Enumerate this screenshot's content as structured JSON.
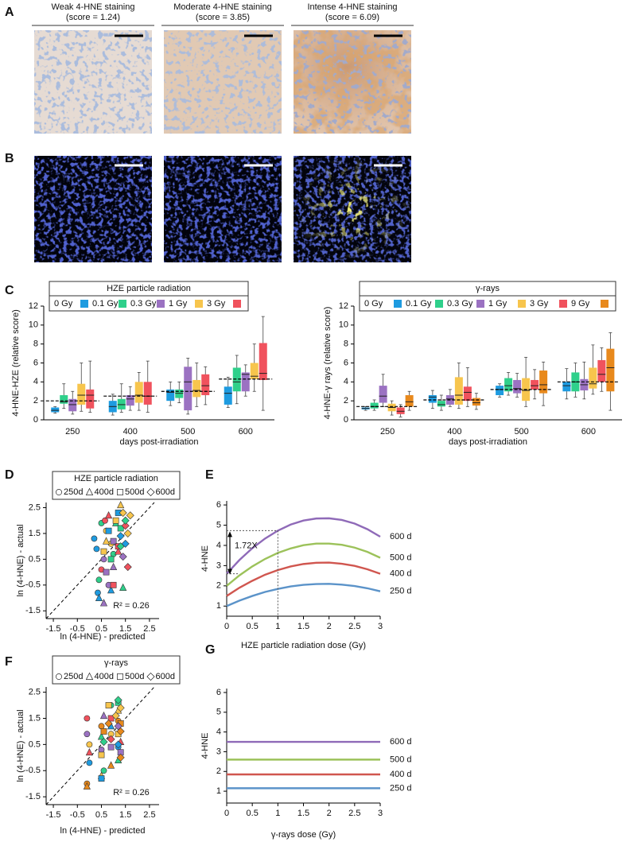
{
  "panels": [
    "A",
    "B",
    "C",
    "D",
    "E",
    "F",
    "G"
  ],
  "images": [
    {
      "title": "Weak 4-HNE staining",
      "subtitle": "(score = 1.24)"
    },
    {
      "title": "Moderate 4-HNE staining",
      "subtitle": "(score = 3.85)"
    },
    {
      "title": "Intense 4-HNE staining",
      "subtitle": "(score = 6.09)"
    }
  ],
  "chart_data": [
    {
      "type": "box",
      "legend_title": "HZE particle radiation",
      "y_label": "4-HNE-HZE (relative score)",
      "x_label": "days post-irradiation",
      "categories": [
        "250",
        "400",
        "500",
        "600"
      ],
      "ylim": [
        0,
        12
      ],
      "yticks": [
        0,
        2,
        4,
        6,
        8,
        10,
        12
      ],
      "means": [
        2.0,
        2.5,
        3.0,
        4.3
      ],
      "series": [
        {
          "name": "0 Gy",
          "color": "#1e9be0",
          "min": [
            0.7,
            0.5,
            1.5,
            1.3
          ],
          "q1": [
            0.8,
            0.8,
            2.0,
            1.6
          ],
          "median": [
            1.0,
            1.4,
            2.9,
            2.8
          ],
          "q3": [
            1.3,
            2.0,
            3.2,
            3.5
          ],
          "max": [
            1.4,
            2.7,
            4.0,
            4.5
          ]
        },
        {
          "name": "0.1 Gy",
          "color": "#2fd08b",
          "min": [
            1.2,
            0.8,
            1.8,
            1.7
          ],
          "q1": [
            1.7,
            1.1,
            2.3,
            3.0
          ],
          "median": [
            1.9,
            1.6,
            2.8,
            4.0
          ],
          "q3": [
            2.6,
            2.2,
            3.2,
            5.5
          ],
          "max": [
            3.8,
            3.8,
            4.0,
            6.8
          ]
        },
        {
          "name": "0.3 Gy",
          "color": "#9b72c2",
          "min": [
            0.6,
            1.0,
            0.6,
            2.5
          ],
          "q1": [
            0.9,
            1.5,
            1.0,
            3.0
          ],
          "median": [
            1.6,
            2.2,
            4.0,
            4.8
          ],
          "q3": [
            2.2,
            2.6,
            5.6,
            5.0
          ],
          "max": [
            3.0,
            3.5,
            6.5,
            5.8
          ]
        },
        {
          "name": "1 Gy",
          "color": "#f7c54d",
          "min": [
            0.9,
            1.0,
            1.4,
            3.0
          ],
          "q1": [
            1.6,
            1.8,
            2.4,
            4.3
          ],
          "median": [
            2.6,
            2.6,
            3.1,
            4.6
          ],
          "q3": [
            3.8,
            4.0,
            4.2,
            6.0
          ],
          "max": [
            6.0,
            5.0,
            6.0,
            8.0
          ]
        },
        {
          "name": "3 Gy",
          "color": "#f0525d",
          "min": [
            0.8,
            0.8,
            1.6,
            1.0
          ],
          "q1": [
            1.2,
            1.6,
            2.6,
            4.2
          ],
          "median": [
            2.6,
            2.5,
            3.6,
            4.9
          ],
          "q3": [
            3.2,
            4.0,
            4.8,
            8.1
          ],
          "max": [
            6.2,
            6.2,
            5.6,
            10.9
          ]
        }
      ]
    },
    {
      "type": "box",
      "legend_title": "γ-rays",
      "y_label": "4-HNE-γ rays (relative score)",
      "x_label": "days post-irradiation",
      "categories": [
        "250",
        "400",
        "500",
        "600"
      ],
      "ylim": [
        0,
        12
      ],
      "yticks": [
        0,
        2,
        4,
        6,
        8,
        10,
        12
      ],
      "means": [
        1.4,
        2.1,
        3.2,
        4.0
      ],
      "series": [
        {
          "name": "0 Gy",
          "color": "#1e9be0",
          "min": [
            1.0,
            1.2,
            2.4,
            2.2
          ],
          "q1": [
            1.1,
            1.8,
            2.6,
            3.0
          ],
          "median": [
            1.2,
            2.4,
            3.2,
            3.6
          ],
          "q3": [
            1.3,
            2.6,
            3.6,
            4.0
          ],
          "max": [
            1.4,
            3.1,
            3.8,
            5.4
          ]
        },
        {
          "name": "0.1 Gy",
          "color": "#2fd08b",
          "min": [
            1.0,
            1.0,
            2.6,
            2.4
          ],
          "q1": [
            1.2,
            1.4,
            3.0,
            3.0
          ],
          "median": [
            1.4,
            1.6,
            3.6,
            4.0
          ],
          "q3": [
            1.8,
            2.0,
            4.4,
            5.0
          ],
          "max": [
            2.1,
            2.6,
            5.0,
            6.0
          ]
        },
        {
          "name": "0.3 Gy",
          "color": "#9b72c2",
          "min": [
            1.4,
            1.4,
            2.4,
            2.2
          ],
          "q1": [
            1.8,
            1.6,
            2.8,
            3.1
          ],
          "median": [
            2.5,
            2.2,
            3.3,
            3.7
          ],
          "q3": [
            3.6,
            2.6,
            4.2,
            4.3
          ],
          "max": [
            4.8,
            3.2,
            4.9,
            6.1
          ]
        },
        {
          "name": "1 Gy",
          "color": "#f7c54d",
          "min": [
            0.5,
            1.2,
            1.4,
            2.7
          ],
          "q1": [
            0.9,
            1.6,
            2.0,
            3.3
          ],
          "median": [
            1.3,
            2.6,
            3.1,
            3.8
          ],
          "q3": [
            1.7,
            4.5,
            4.4,
            5.5
          ],
          "max": [
            2.0,
            6.0,
            6.6,
            7.9
          ]
        },
        {
          "name": "3 Gy",
          "color": "#f0525d",
          "min": [
            0.3,
            1.4,
            2.2,
            3.0
          ],
          "q1": [
            0.6,
            2.0,
            3.2,
            4.0
          ],
          "median": [
            0.9,
            2.9,
            3.6,
            4.8
          ],
          "q3": [
            1.3,
            3.5,
            4.2,
            6.3
          ],
          "max": [
            1.6,
            5.5,
            5.3,
            7.6
          ]
        },
        {
          "name": "9 Gy",
          "color": "#e8891c",
          "min": [
            1.0,
            1.1,
            1.5,
            1.0
          ],
          "q1": [
            1.4,
            1.5,
            2.8,
            3.0
          ],
          "median": [
            1.9,
            1.8,
            3.7,
            5.5
          ],
          "q3": [
            2.6,
            2.3,
            5.2,
            7.5
          ],
          "max": [
            3.0,
            2.8,
            6.1,
            9.2
          ]
        }
      ]
    },
    {
      "type": "scatter",
      "legend_title": "HZE particle radiation",
      "y_label": "ln (4-HNE) - actual",
      "x_label": "ln (4-HNE) - predicted",
      "annotation": "R² = 0.26",
      "xlim": [
        -1.8,
        2.9
      ],
      "ylim": [
        -1.8,
        2.7
      ],
      "xticks": [
        -1.5,
        -0.5,
        0.5,
        1.5,
        2.5
      ],
      "yticks": [
        -1.5,
        -0.5,
        0.5,
        1.5,
        2.5
      ],
      "series": [
        {
          "name": "250d",
          "marker": "circle",
          "x": [
            0.3,
            0.4,
            0.5,
            0.6,
            0.2,
            0.7,
            0.8,
            0.5,
            0.9,
            0.35,
            0.65,
            1.0
          ],
          "y": [
            0.9,
            -0.3,
            1.9,
            0.5,
            1.3,
            1.6,
            -0.5,
            0.1,
            1.1,
            -0.8,
            2.0,
            0.7
          ],
          "colors": [
            "#1e9be0",
            "#2fd08b",
            "#2fd08b",
            "#9b72c2",
            "#1e9be0",
            "#f7c54d",
            "#9b72c2",
            "#f0525d",
            "#f7c54d",
            "#1e9be0",
            "#f0525d",
            "#2fd08b"
          ]
        },
        {
          "name": "400d",
          "marker": "triangle",
          "x": [
            0.4,
            0.6,
            0.9,
            1.1,
            1.3,
            1.0,
            0.7,
            1.2,
            0.8,
            1.4
          ],
          "y": [
            -1.0,
            -1.2,
            -0.7,
            1.9,
            2.6,
            0.2,
            1.2,
            0.8,
            2.2,
            -0.6
          ],
          "colors": [
            "#1e9be0",
            "#9b72c2",
            "#1e9be0",
            "#2fd08b",
            "#f7c54d",
            "#9b72c2",
            "#f7c54d",
            "#f0525d",
            "#f0525d",
            "#2fd08b"
          ]
        },
        {
          "name": "500d",
          "marker": "square",
          "x": [
            0.8,
            0.9,
            1.0,
            1.1,
            1.2,
            0.7,
            1.3,
            1.0,
            0.6,
            1.2
          ],
          "y": [
            1.6,
            0.5,
            1.2,
            2.0,
            1.0,
            0.0,
            1.7,
            -0.5,
            0.8,
            2.3
          ],
          "colors": [
            "#1e9be0",
            "#2fd08b",
            "#9b72c2",
            "#f7c54d",
            "#f0525d",
            "#9b72c2",
            "#2fd08b",
            "#f0525d",
            "#f7c54d",
            "#1e9be0"
          ]
        },
        {
          "name": "600d",
          "marker": "diamond",
          "x": [
            1.3,
            1.4,
            1.5,
            1.6,
            1.4,
            1.5,
            1.6,
            1.5,
            1.7,
            1.3
          ],
          "y": [
            1.4,
            2.3,
            1.8,
            1.5,
            0.6,
            2.0,
            0.2,
            1.1,
            2.2,
            1.0
          ],
          "colors": [
            "#1e9be0",
            "#f7c54d",
            "#f0525d",
            "#f7c54d",
            "#9b72c2",
            "#2fd08b",
            "#f0525d",
            "#1e9be0",
            "#f7c54d",
            "#2fd08b"
          ]
        }
      ]
    },
    {
      "type": "line",
      "y_label": "4-HNE",
      "x_label": "HZE particle radiation dose (Gy)",
      "annotation": "1.72X",
      "xlim": [
        0,
        3
      ],
      "ylim": [
        0.5,
        6.2
      ],
      "xticks": [
        0,
        0.5,
        1,
        1.5,
        2,
        2.5,
        3
      ],
      "yticks": [
        1,
        2,
        3,
        4,
        5,
        6
      ],
      "x": [
        0,
        0.25,
        0.5,
        0.75,
        1,
        1.25,
        1.5,
        1.75,
        2,
        2.25,
        2.5,
        2.75,
        3
      ],
      "series": [
        {
          "name": "250 d",
          "color": "#5b93c9",
          "values": [
            1.0,
            1.27,
            1.5,
            1.7,
            1.85,
            1.97,
            2.05,
            2.09,
            2.1,
            2.06,
            1.99,
            1.88,
            1.73
          ]
        },
        {
          "name": "400 d",
          "color": "#d0564f",
          "values": [
            1.5,
            1.91,
            2.25,
            2.55,
            2.78,
            2.96,
            3.08,
            3.14,
            3.15,
            3.09,
            2.99,
            2.82,
            2.6
          ]
        },
        {
          "name": "500 d",
          "color": "#9cc25a",
          "values": [
            2.0,
            2.52,
            2.96,
            3.33,
            3.63,
            3.85,
            4.01,
            4.09,
            4.09,
            4.03,
            3.89,
            3.68,
            3.39
          ]
        },
        {
          "name": "600 d",
          "color": "#8f6ab8",
          "values": [
            2.6,
            3.28,
            3.86,
            4.34,
            4.73,
            5.03,
            5.23,
            5.33,
            5.34,
            5.26,
            5.08,
            4.8,
            4.43
          ]
        }
      ]
    },
    {
      "type": "scatter",
      "legend_title": "γ-rays",
      "y_label": "ln (4-HNE) - actual",
      "x_label": "ln (4-HNE) - predicted",
      "annotation": "R² = 0.26",
      "xlim": [
        -1.8,
        2.9
      ],
      "ylim": [
        -1.8,
        2.7
      ],
      "xticks": [
        -1.5,
        -0.5,
        0.5,
        1.5,
        2.5
      ],
      "yticks": [
        -1.5,
        -0.5,
        0.5,
        1.5,
        2.5
      ],
      "series": [
        {
          "name": "250d",
          "marker": "circle",
          "x": [
            -0.1,
            0.0,
            -0.1,
            0.0,
            0.5,
            0.5,
            0.6,
            0.9,
            0.9,
            1.2,
            1.2,
            -0.1
          ],
          "y": [
            -1.0,
            0.5,
            1.5,
            -0.2,
            0.3,
            1.2,
            -0.5,
            0.9,
            2.0,
            0.4,
            1.4,
            0.9
          ],
          "colors": [
            "#e8891c",
            "#f7c54d",
            "#f0525d",
            "#1e9be0",
            "#9b72c2",
            "#e8891c",
            "#2fd08b",
            "#f7c54d",
            "#2fd08b",
            "#1e9be0",
            "#e8891c",
            "#9b72c2"
          ]
        },
        {
          "name": "400d",
          "marker": "triangle",
          "x": [
            -0.1,
            0.0,
            0.5,
            0.5,
            0.6,
            0.9,
            0.9,
            1.2,
            1.3,
            1.2
          ],
          "y": [
            -1.1,
            0.2,
            -0.7,
            0.8,
            1.6,
            -0.3,
            1.2,
            1.8,
            0.6,
            -0.1
          ],
          "colors": [
            "#e8891c",
            "#f0525d",
            "#f7c54d",
            "#2fd08b",
            "#9b72c2",
            "#e8891c",
            "#1e9be0",
            "#f7c54d",
            "#f0525d",
            "#2fd08b"
          ]
        },
        {
          "name": "500d",
          "marker": "square",
          "x": [
            0.5,
            0.6,
            0.9,
            0.9,
            1.2,
            1.2,
            1.3,
            0.5,
            0.8,
            1.3
          ],
          "y": [
            0.1,
            1.0,
            0.4,
            1.5,
            2.1,
            0.9,
            1.3,
            -0.8,
            2.0,
            0.2
          ],
          "colors": [
            "#f7c54d",
            "#e8891c",
            "#9b72c2",
            "#f0525d",
            "#2fd08b",
            "#f7c54d",
            "#e8891c",
            "#1e9be0",
            "#f7c54d",
            "#9b72c2"
          ]
        },
        {
          "name": "600d",
          "marker": "diamond",
          "x": [
            1.1,
            1.2,
            1.3,
            1.2,
            1.3,
            0.9,
            0.8,
            1.2,
            1.3,
            0.6
          ],
          "y": [
            1.6,
            2.2,
            1.0,
            0.5,
            1.9,
            0.7,
            1.3,
            1.2,
            0.0,
            0.6
          ],
          "colors": [
            "#f7c54d",
            "#2fd08b",
            "#e8891c",
            "#1e9be0",
            "#f7c54d",
            "#f0525d",
            "#e8891c",
            "#9b72c2",
            "#e8891c",
            "#2fd08b"
          ]
        }
      ]
    },
    {
      "type": "line",
      "y_label": "4-HNE",
      "x_label": "γ-rays  dose (Gy)",
      "xlim": [
        0,
        3
      ],
      "ylim": [
        0.4,
        6.2
      ],
      "xticks": [
        0,
        0.5,
        1,
        1.5,
        2,
        2.5,
        3
      ],
      "yticks": [
        1,
        2,
        3,
        4,
        5,
        6
      ],
      "x": [
        0,
        3
      ],
      "series": [
        {
          "name": "250 d",
          "color": "#5b93c9",
          "values": [
            1.15,
            1.15
          ]
        },
        {
          "name": "400 d",
          "color": "#d0564f",
          "values": [
            1.85,
            1.85
          ]
        },
        {
          "name": "500 d",
          "color": "#9cc25a",
          "values": [
            2.6,
            2.6
          ]
        },
        {
          "name": "600 d",
          "color": "#8f6ab8",
          "values": [
            3.5,
            3.5
          ]
        }
      ]
    }
  ]
}
